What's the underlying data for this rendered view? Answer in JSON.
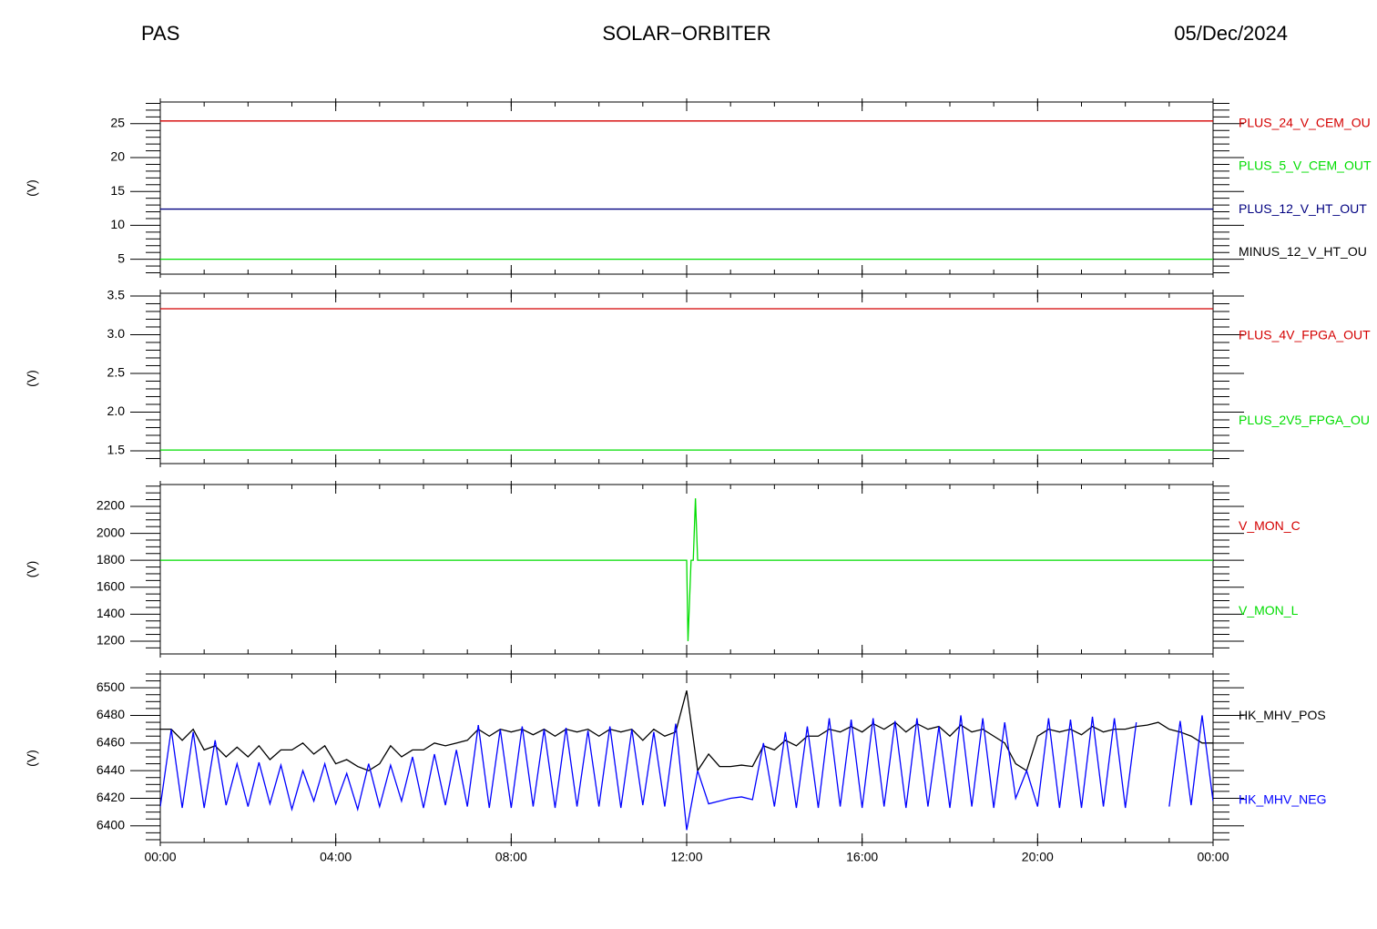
{
  "header": {
    "left": "PAS",
    "center": "SOLAR−ORBITER",
    "right": "05/Dec/2024"
  },
  "chart_data": [
    {
      "type": "line",
      "ylabel": "(V)",
      "xlim": [
        0,
        24
      ],
      "ylim": [
        2.8,
        28.2
      ],
      "yticks": [
        5,
        10,
        15,
        20,
        25
      ],
      "x": [
        0,
        24
      ],
      "series": [
        {
          "name": "PLUS_24_V_CEM_OU",
          "color": "#d40000",
          "values": [
            25.4,
            25.4
          ]
        },
        {
          "name": "PLUS_5_V_CEM_OUT",
          "color": "#00dd00",
          "values": [
            5.0,
            5.0
          ]
        },
        {
          "name": "PLUS_12_V_HT_OUT",
          "color": "#000080",
          "values": [
            12.4,
            12.4
          ]
        },
        {
          "name": "MINUS_12_V_HT_OU",
          "color": "#000000",
          "values": [
            null,
            null
          ]
        }
      ]
    },
    {
      "type": "line",
      "ylabel": "(V)",
      "xlim": [
        0,
        24
      ],
      "ylim": [
        1.335,
        3.535
      ],
      "yticks": [
        1.5,
        {
          "value": 2,
          "label": "2.0"
        },
        2.5,
        {
          "value": 3,
          "label": "3.0"
        },
        3.5
      ],
      "x": [
        0,
        24
      ],
      "series": [
        {
          "name": "PLUS_4V_FPGA_OUT",
          "color": "#d40000",
          "values": [
            3.335,
            3.335
          ]
        },
        {
          "name": "PLUS_2V5_FPGA_OU",
          "color": "#00dd00",
          "values": [
            1.51,
            1.51
          ]
        }
      ]
    },
    {
      "type": "line",
      "ylabel": "(V)",
      "xlim": [
        0,
        24
      ],
      "ylim": [
        1105,
        2362
      ],
      "yticks": [
        1200,
        1400,
        1600,
        1800,
        2000,
        2200
      ],
      "x": [
        0,
        12.0,
        12.03,
        12.1,
        12.15,
        12.2,
        12.25,
        24
      ],
      "series": [
        {
          "name": "V_MON_C",
          "color": "#d40000",
          "values": [
            null,
            null,
            null,
            null,
            null,
            null,
            null,
            null
          ]
        },
        {
          "name": "V_MON_L",
          "color": "#00dd00",
          "values": [
            1800,
            1800,
            1200,
            1800,
            1800,
            2260,
            1800,
            1800
          ]
        }
      ]
    },
    {
      "type": "line",
      "ylabel": "(V)",
      "xlim": [
        0,
        24
      ],
      "ylim": [
        6388,
        6510
      ],
      "yticks": [
        6400,
        6420,
        6440,
        6460,
        6480,
        6500
      ],
      "xticks": [
        {
          "value": 0,
          "label": "00:00"
        },
        {
          "value": 4,
          "label": "04:00"
        },
        {
          "value": 8,
          "label": "08:00"
        },
        {
          "value": 12,
          "label": "12:00"
        },
        {
          "value": 16,
          "label": "16:00"
        },
        {
          "value": 20,
          "label": "20:00"
        },
        {
          "value": 24,
          "label": "00:00"
        }
      ],
      "x": [
        0,
        0.25,
        0.5,
        0.75,
        1,
        1.25,
        1.5,
        1.75,
        2,
        2.25,
        2.5,
        2.75,
        3,
        3.25,
        3.5,
        3.75,
        4,
        4.25,
        4.5,
        4.75,
        5,
        5.25,
        5.5,
        5.75,
        6,
        6.25,
        6.5,
        6.75,
        7,
        7.25,
        7.5,
        7.75,
        8,
        8.25,
        8.5,
        8.75,
        9,
        9.25,
        9.5,
        9.75,
        10,
        10.25,
        10.5,
        10.75,
        11,
        11.25,
        11.5,
        11.75,
        12,
        12.25,
        12.5,
        12.75,
        13,
        13.25,
        13.5,
        13.75,
        14,
        14.25,
        14.5,
        14.75,
        15,
        15.25,
        15.5,
        15.75,
        16,
        16.25,
        16.5,
        16.75,
        17,
        17.25,
        17.5,
        17.75,
        18,
        18.25,
        18.5,
        18.75,
        19,
        19.25,
        19.5,
        19.75,
        20,
        20.25,
        20.5,
        20.75,
        21,
        21.25,
        21.5,
        21.75,
        22,
        22.25,
        22.5,
        22.75,
        23,
        23.25,
        23.5,
        23.75,
        24
      ],
      "series": [
        {
          "name": "HK_MHV_POS",
          "color": "#000000",
          "values": [
            6470,
            6470,
            6462,
            6470,
            6455,
            6458,
            6450,
            6457,
            6450,
            6458,
            6448,
            6455,
            6455,
            6460,
            6452,
            6458,
            6445,
            6448,
            6443,
            6440,
            6445,
            6458,
            6450,
            6455,
            6455,
            6460,
            6458,
            6460,
            6462,
            6470,
            6465,
            6470,
            6468,
            6470,
            6466,
            6470,
            6465,
            6470,
            6468,
            6470,
            6465,
            6470,
            6468,
            6470,
            6462,
            6470,
            6465,
            6468,
            6498,
            6440,
            6452,
            6443,
            6443,
            6444,
            6443,
            6458,
            6455,
            6462,
            6458,
            6465,
            6465,
            6470,
            6468,
            6472,
            6468,
            6474,
            6470,
            6475,
            6468,
            6474,
            6470,
            6472,
            6465,
            6473,
            6468,
            6470,
            6465,
            6460,
            6445,
            6440,
            6465,
            6470,
            6468,
            6470,
            6466,
            6472,
            6468,
            6470,
            6470,
            6472,
            6473,
            6475,
            6470,
            6468,
            6465,
            6460,
            6460
          ]
        },
        {
          "name": "HK_MHV_NEG",
          "color": "#0000ff",
          "values": [
            6414,
            6470,
            6413,
            6468,
            6413,
            6462,
            6415,
            6445,
            6414,
            6446,
            6416,
            6444,
            6412,
            6440,
            6418,
            6445,
            6416,
            6438,
            6412,
            6445,
            6414,
            6444,
            6418,
            6450,
            6413,
            6452,
            6415,
            6455,
            6414,
            6473,
            6413,
            6470,
            6413,
            6472,
            6414,
            6470,
            6413,
            6471,
            6414,
            6469,
            6414,
            6472,
            6413,
            6470,
            6415,
            6468,
            6414,
            6474,
            6397,
            6440,
            6416,
            6418,
            6420,
            6421,
            6419,
            6460,
            6414,
            6468,
            6413,
            6472,
            6413,
            6478,
            6414,
            6477,
            6413,
            6478,
            6414,
            6476,
            6413,
            6478,
            6414,
            6472,
            6413,
            6480,
            6414,
            6478,
            6413,
            6475,
            6420,
            6440,
            6414,
            6478,
            6413,
            6477,
            6413,
            6479,
            6414,
            6478,
            6413,
            6475,
            null,
            null,
            6414,
            6476,
            6415,
            6480,
            6418
          ]
        }
      ]
    }
  ]
}
